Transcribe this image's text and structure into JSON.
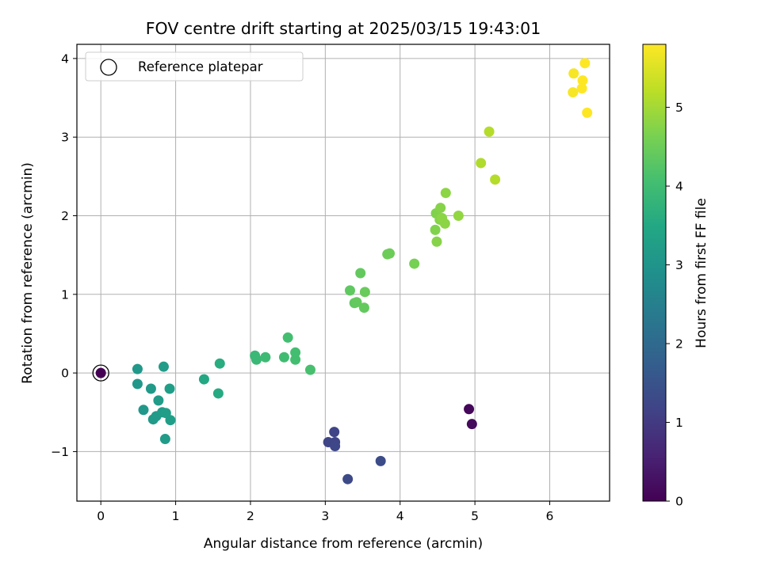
{
  "chart_data": {
    "type": "scatter",
    "title": "FOV centre drift starting at 2025/03/15 19:43:01",
    "xlabel": "Angular distance from reference (arcmin)",
    "ylabel": "Rotation from reference (arcmin)",
    "xlim": [
      -0.32,
      6.8
    ],
    "ylim": [
      -1.63,
      4.18
    ],
    "xticks": [
      0,
      1,
      2,
      3,
      4,
      5,
      6
    ],
    "xtick_labels": [
      "0",
      "1",
      "2",
      "3",
      "4",
      "5",
      "6"
    ],
    "yticks": [
      -1,
      0,
      1,
      2,
      3,
      4
    ],
    "ytick_labels": [
      "−1",
      "0",
      "1",
      "2",
      "3",
      "4"
    ],
    "grid": true,
    "legend": {
      "label": "Reference platepar",
      "location": "top-left",
      "marker": "open-circle"
    },
    "reference_point": {
      "x": 0,
      "y": 0
    },
    "colorbar": {
      "label": "Hours from first FF file",
      "colormap": "viridis",
      "range": [
        0,
        5.8
      ],
      "ticks": [
        0,
        1,
        2,
        3,
        4,
        5
      ],
      "tick_labels": [
        "0",
        "1",
        "2",
        "3",
        "4",
        "5"
      ]
    },
    "points": [
      {
        "x": 0.0,
        "y": 0.0,
        "c": 0.0
      },
      {
        "x": 4.92,
        "y": -0.46,
        "c": 0.1
      },
      {
        "x": 4.96,
        "y": -0.65,
        "c": 0.15
      },
      {
        "x": 3.04,
        "y": -0.88,
        "c": 1.2
      },
      {
        "x": 3.12,
        "y": -0.75,
        "c": 1.2
      },
      {
        "x": 3.13,
        "y": -0.88,
        "c": 1.2
      },
      {
        "x": 3.13,
        "y": -0.93,
        "c": 1.25
      },
      {
        "x": 3.3,
        "y": -1.35,
        "c": 1.3
      },
      {
        "x": 3.74,
        "y": -1.12,
        "c": 1.35
      },
      {
        "x": 0.49,
        "y": 0.05,
        "c": 3.1
      },
      {
        "x": 0.49,
        "y": -0.14,
        "c": 3.1
      },
      {
        "x": 0.57,
        "y": -0.47,
        "c": 3.1
      },
      {
        "x": 0.67,
        "y": -0.2,
        "c": 3.15
      },
      {
        "x": 0.7,
        "y": -0.59,
        "c": 3.15
      },
      {
        "x": 0.74,
        "y": -0.55,
        "c": 3.15
      },
      {
        "x": 0.77,
        "y": -0.35,
        "c": 3.2
      },
      {
        "x": 0.82,
        "y": -0.5,
        "c": 3.2
      },
      {
        "x": 0.84,
        "y": 0.08,
        "c": 3.2
      },
      {
        "x": 0.86,
        "y": -0.84,
        "c": 3.2
      },
      {
        "x": 0.87,
        "y": -0.51,
        "c": 3.25
      },
      {
        "x": 0.92,
        "y": -0.2,
        "c": 3.25
      },
      {
        "x": 0.93,
        "y": -0.6,
        "c": 3.25
      },
      {
        "x": 1.38,
        "y": -0.08,
        "c": 3.5
      },
      {
        "x": 1.57,
        "y": -0.26,
        "c": 3.55
      },
      {
        "x": 1.59,
        "y": 0.12,
        "c": 3.6
      },
      {
        "x": 2.06,
        "y": 0.22,
        "c": 3.9
      },
      {
        "x": 2.08,
        "y": 0.17,
        "c": 3.9
      },
      {
        "x": 2.2,
        "y": 0.2,
        "c": 3.95
      },
      {
        "x": 2.45,
        "y": 0.2,
        "c": 4.0
      },
      {
        "x": 2.5,
        "y": 0.45,
        "c": 4.05
      },
      {
        "x": 2.6,
        "y": 0.26,
        "c": 4.05
      },
      {
        "x": 2.6,
        "y": 0.17,
        "c": 4.05
      },
      {
        "x": 2.8,
        "y": 0.04,
        "c": 4.1
      },
      {
        "x": 3.33,
        "y": 1.05,
        "c": 4.35
      },
      {
        "x": 3.39,
        "y": 0.89,
        "c": 4.35
      },
      {
        "x": 3.42,
        "y": 0.9,
        "c": 4.4
      },
      {
        "x": 3.47,
        "y": 1.27,
        "c": 4.4
      },
      {
        "x": 3.52,
        "y": 0.83,
        "c": 4.4
      },
      {
        "x": 3.53,
        "y": 1.03,
        "c": 4.45
      },
      {
        "x": 3.83,
        "y": 1.51,
        "c": 4.5
      },
      {
        "x": 3.86,
        "y": 1.52,
        "c": 4.5
      },
      {
        "x": 4.19,
        "y": 1.39,
        "c": 4.6
      },
      {
        "x": 4.47,
        "y": 1.82,
        "c": 4.7
      },
      {
        "x": 4.48,
        "y": 2.03,
        "c": 4.7
      },
      {
        "x": 4.49,
        "y": 1.67,
        "c": 4.75
      },
      {
        "x": 4.53,
        "y": 1.95,
        "c": 4.75
      },
      {
        "x": 4.54,
        "y": 2.1,
        "c": 4.75
      },
      {
        "x": 4.56,
        "y": 1.97,
        "c": 4.8
      },
      {
        "x": 4.6,
        "y": 1.9,
        "c": 4.8
      },
      {
        "x": 4.61,
        "y": 2.29,
        "c": 4.8
      },
      {
        "x": 4.78,
        "y": 2.0,
        "c": 4.85
      },
      {
        "x": 5.08,
        "y": 2.67,
        "c": 5.1
      },
      {
        "x": 5.19,
        "y": 3.07,
        "c": 5.15
      },
      {
        "x": 5.27,
        "y": 2.46,
        "c": 5.15
      },
      {
        "x": 6.31,
        "y": 3.57,
        "c": 5.75
      },
      {
        "x": 6.32,
        "y": 3.81,
        "c": 5.75
      },
      {
        "x": 6.43,
        "y": 3.62,
        "c": 5.8
      },
      {
        "x": 6.44,
        "y": 3.72,
        "c": 5.8
      },
      {
        "x": 6.47,
        "y": 3.94,
        "c": 5.8
      },
      {
        "x": 6.5,
        "y": 3.31,
        "c": 5.8
      }
    ]
  }
}
